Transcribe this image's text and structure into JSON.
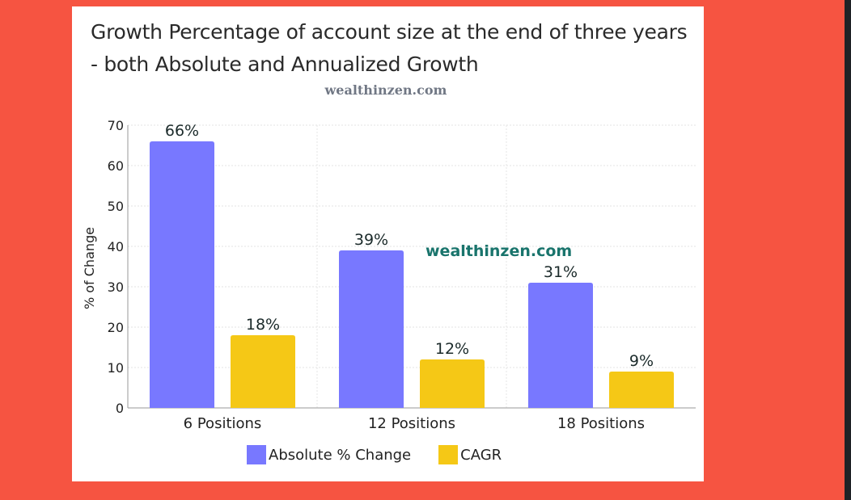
{
  "chart_data": {
    "type": "bar",
    "title": "Growth Percentage of account size at the end of three years - both Absolute and Annualized Growth",
    "subtitle": "wealthinzen.com",
    "watermark": "wealthinzen.com",
    "categories": [
      "6 Positions",
      "12 Positions",
      "18 Positions"
    ],
    "series": [
      {
        "name": "Absolute % Change",
        "values": [
          66,
          39,
          31
        ],
        "labels": [
          "66%",
          "39%",
          "31%"
        ],
        "color": "#7878ff"
      },
      {
        "name": "CAGR",
        "values": [
          18,
          12,
          9
        ],
        "labels": [
          "18%",
          "12%",
          "9%"
        ],
        "color": "#f5c816"
      }
    ],
    "xlabel": "",
    "ylabel": "% of Change",
    "ylim": [
      0,
      70
    ],
    "yticks": [
      0,
      10,
      20,
      30,
      40,
      50,
      60,
      70
    ],
    "grid": true,
    "legend": "bottom"
  }
}
